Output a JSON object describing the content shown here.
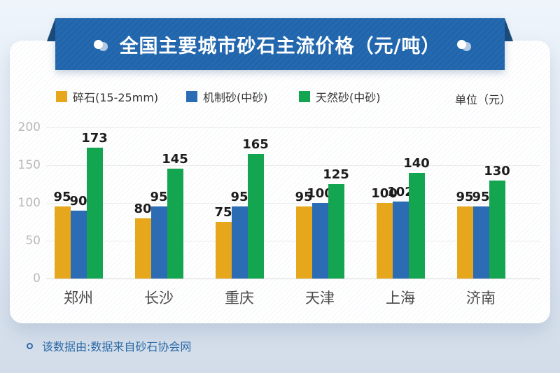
{
  "banner": {
    "title": "全国主要城市砂石主流价格（元/吨）",
    "bg_color": "#2166ad",
    "fold_color": "#1b4b7b"
  },
  "legend": {
    "unit_label": "单位（元）"
  },
  "chart_data": {
    "type": "bar",
    "title": "全国主要城市砂石主流价格（元/吨）",
    "categories": [
      "郑州",
      "长沙",
      "重庆",
      "天津",
      "上海",
      "济南"
    ],
    "series": [
      {
        "name": "碎石(15-25mm)",
        "color": "#e7a71c",
        "values": [
          95,
          80,
          75,
          95,
          100,
          95
        ]
      },
      {
        "name": "机制砂(中砂)",
        "color": "#2b6cb4",
        "values": [
          90,
          95,
          95,
          100,
          102,
          95
        ]
      },
      {
        "name": "天然砂(中砂)",
        "color": "#14a550",
        "values": [
          173,
          145,
          165,
          125,
          140,
          130
        ]
      }
    ],
    "xlabel": "",
    "ylabel": "",
    "ylim": [
      0,
      200
    ],
    "yticks": [
      0,
      50,
      100,
      150,
      200
    ],
    "grid": true,
    "legend_position": "top"
  },
  "footer": {
    "text": "该数据由:数据来自砂石协会网"
  }
}
